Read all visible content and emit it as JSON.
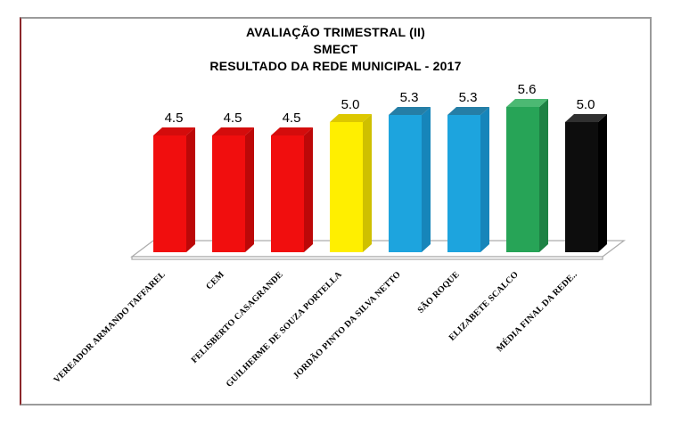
{
  "chart_data": {
    "type": "bar",
    "style": "3d-column",
    "title_lines": [
      "AVALIAÇÃO TRIMESTRAL (II)",
      "SMECT",
      "RESULTADO DA REDE MUNICIPAL - 2017"
    ],
    "categories": [
      "VEREADOR ARMANDO TAFFAREL",
      "CEM",
      "FELISBERTO CASAGRANDE",
      "GUILHERME DE SOUZA PORTELLA",
      "JORDÃO PINTO DA SILVA NETTO",
      "SÃO ROQUE",
      "ELIZABETE SCALCO",
      "MÉDIA FINAL DA REDE.."
    ],
    "values": [
      4.5,
      4.5,
      4.5,
      5.0,
      5.3,
      5.3,
      5.6,
      5.0
    ],
    "value_labels": [
      "4.5",
      "4.5",
      "4.5",
      "5.0",
      "5.3",
      "5.3",
      "5.6",
      "5.0"
    ],
    "bar_colors": [
      {
        "front": "#f10e0e",
        "top": "#d40c0c",
        "side": "#bc0808"
      },
      {
        "front": "#f10e0e",
        "top": "#d40c0c",
        "side": "#bc0808"
      },
      {
        "front": "#f10e0e",
        "top": "#d40c0c",
        "side": "#bc0808"
      },
      {
        "front": "#ffef00",
        "top": "#ddc800",
        "side": "#cfc000"
      },
      {
        "front": "#1da4de",
        "top": "#257ea6",
        "side": "#1685ba"
      },
      {
        "front": "#1da4de",
        "top": "#257ea6",
        "side": "#1685ba"
      },
      {
        "front": "#27a457",
        "top": "#4cb973",
        "side": "#1e8244"
      },
      {
        "front": "#0d0d0d",
        "top": "#303030",
        "side": "#000000"
      }
    ],
    "ylim": [
      0,
      6
    ],
    "grid": false,
    "legend": null,
    "xlabel": "",
    "ylabel": "",
    "floor_outline_color": "#adadad",
    "frame_border_color": "#9b9b9b",
    "frame_left_border_color": "#8b262a"
  }
}
